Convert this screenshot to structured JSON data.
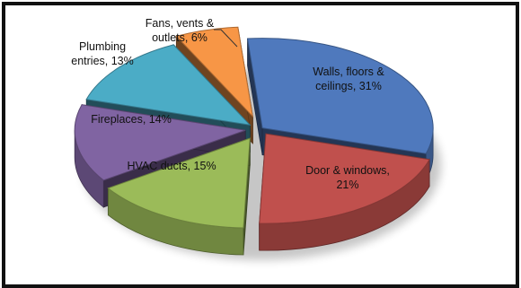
{
  "chart_data": {
    "type": "pie",
    "title": "",
    "slices": [
      {
        "label": "Walls, floors & ceilings",
        "value": 31,
        "display": [
          "Walls, floors &",
          "ceilings, 31%"
        ],
        "color": "#4f79bd"
      },
      {
        "label": "Door & windows",
        "value": 21,
        "display": [
          "Door & windows,",
          "21%"
        ],
        "color": "#c0504d"
      },
      {
        "label": "HVAC ducts",
        "value": 15,
        "display": [
          "HVAC ducts, 15%"
        ],
        "color": "#9bbb59"
      },
      {
        "label": "Fireplaces",
        "value": 14,
        "display": [
          "Fireplaces, 14%"
        ],
        "color": "#8064a2"
      },
      {
        "label": "Plumbing entries",
        "value": 13,
        "display": [
          "Plumbing",
          "entries, 13%"
        ],
        "color": "#4bacc6"
      },
      {
        "label": "Fans, vents & outlets",
        "value": 6,
        "display": [
          "Fans, vents &",
          "outlets, 6%"
        ],
        "color": "#f79646"
      }
    ],
    "style": "3d-exploded"
  }
}
